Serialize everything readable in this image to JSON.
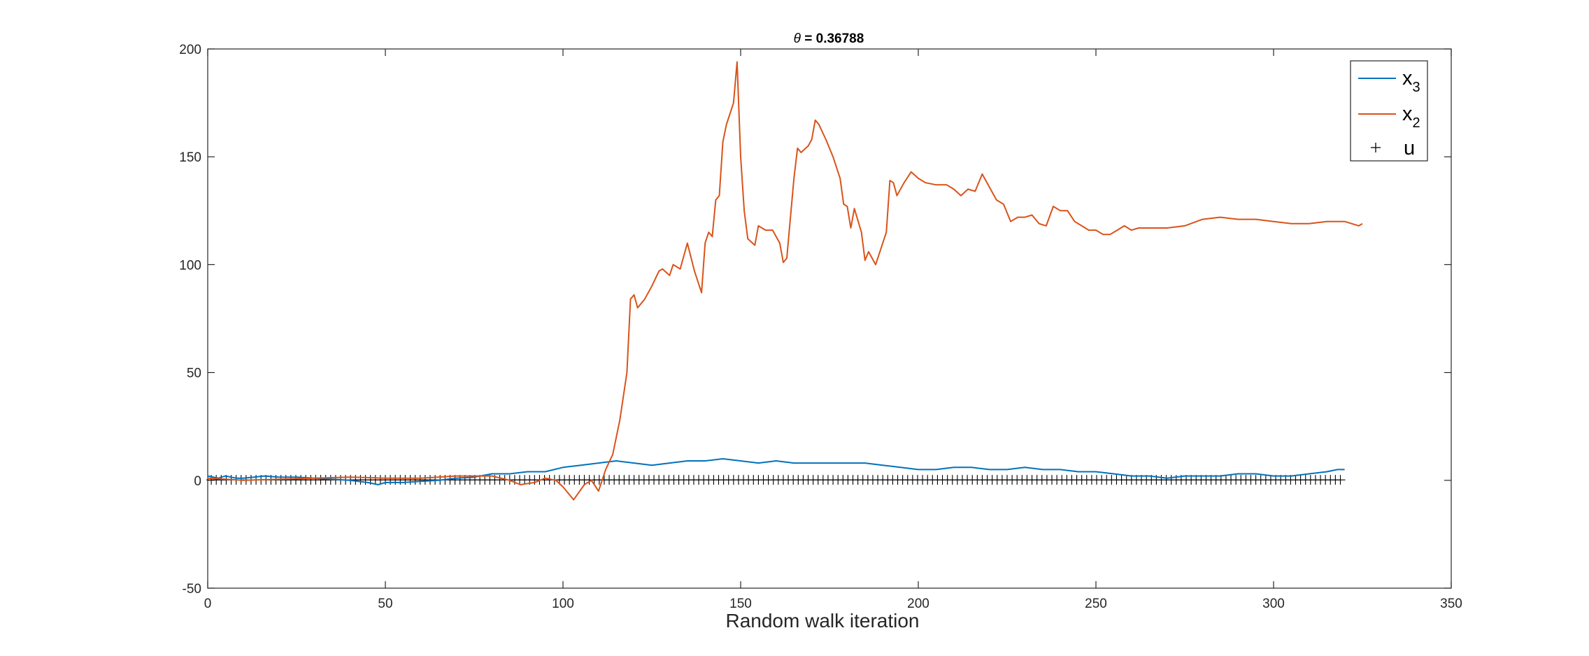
{
  "chart_data": {
    "type": "line",
    "title_symbol": "θ",
    "title_rest": " = 0.36788",
    "xlabel": "Random walk iteration",
    "ylabel": "",
    "xlim": [
      0,
      350
    ],
    "ylim": [
      -50,
      200
    ],
    "xticks": [
      0,
      50,
      100,
      150,
      200,
      250,
      300,
      350
    ],
    "yticks": [
      -50,
      0,
      50,
      100,
      150,
      200
    ],
    "legend_position": "top-right",
    "grid": false,
    "series": [
      {
        "name_main": "x",
        "name_sub": "3",
        "color": "#0072BD",
        "style": "line",
        "points": [
          [
            0,
            2
          ],
          [
            3,
            1
          ],
          [
            5,
            2
          ],
          [
            8,
            1
          ],
          [
            10,
            1
          ],
          [
            13,
            1.5
          ],
          [
            16,
            2
          ],
          [
            20,
            1.5
          ],
          [
            25,
            1.5
          ],
          [
            30,
            1
          ],
          [
            35,
            0.5
          ],
          [
            40,
            0
          ],
          [
            45,
            -1
          ],
          [
            48,
            -2
          ],
          [
            50,
            -1
          ],
          [
            55,
            -1
          ],
          [
            60,
            -0.5
          ],
          [
            65,
            0
          ],
          [
            70,
            1
          ],
          [
            75,
            1.5
          ],
          [
            80,
            3
          ],
          [
            85,
            3
          ],
          [
            90,
            4
          ],
          [
            95,
            4
          ],
          [
            100,
            6
          ],
          [
            105,
            7
          ],
          [
            110,
            8
          ],
          [
            115,
            9
          ],
          [
            120,
            8
          ],
          [
            125,
            7
          ],
          [
            130,
            8
          ],
          [
            135,
            9
          ],
          [
            140,
            9
          ],
          [
            145,
            10
          ],
          [
            150,
            9
          ],
          [
            155,
            8
          ],
          [
            160,
            9
          ],
          [
            165,
            8
          ],
          [
            170,
            8
          ],
          [
            175,
            8
          ],
          [
            180,
            8
          ],
          [
            185,
            8
          ],
          [
            190,
            7
          ],
          [
            195,
            6
          ],
          [
            200,
            5
          ],
          [
            205,
            5
          ],
          [
            210,
            6
          ],
          [
            215,
            6
          ],
          [
            220,
            5
          ],
          [
            225,
            5
          ],
          [
            230,
            6
          ],
          [
            235,
            5
          ],
          [
            240,
            5
          ],
          [
            245,
            4
          ],
          [
            250,
            4
          ],
          [
            255,
            3
          ],
          [
            260,
            2
          ],
          [
            265,
            2
          ],
          [
            270,
            1
          ],
          [
            275,
            2
          ],
          [
            280,
            2
          ],
          [
            285,
            2
          ],
          [
            290,
            3
          ],
          [
            295,
            3
          ],
          [
            300,
            2
          ],
          [
            305,
            2
          ],
          [
            310,
            3
          ],
          [
            315,
            4
          ],
          [
            318,
            5
          ],
          [
            320,
            5
          ]
        ]
      },
      {
        "name_main": "x",
        "name_sub": "2",
        "color": "#D95319",
        "style": "line",
        "points": [
          [
            0,
            1
          ],
          [
            10,
            0
          ],
          [
            20,
            0.5
          ],
          [
            30,
            1
          ],
          [
            40,
            1.5
          ],
          [
            50,
            1
          ],
          [
            60,
            1
          ],
          [
            70,
            2
          ],
          [
            80,
            2
          ],
          [
            85,
            0
          ],
          [
            88,
            -2
          ],
          [
            92,
            -1
          ],
          [
            95,
            1
          ],
          [
            98,
            0
          ],
          [
            100,
            -3
          ],
          [
            103,
            -9
          ],
          [
            106,
            -2
          ],
          [
            108,
            0
          ],
          [
            110,
            -5
          ],
          [
            112,
            5
          ],
          [
            114,
            12
          ],
          [
            116,
            28
          ],
          [
            118,
            50
          ],
          [
            119,
            84
          ],
          [
            120,
            86
          ],
          [
            121,
            80
          ],
          [
            123,
            84
          ],
          [
            125,
            90
          ],
          [
            127,
            97
          ],
          [
            128,
            98
          ],
          [
            130,
            95
          ],
          [
            131,
            100
          ],
          [
            133,
            98
          ],
          [
            135,
            110
          ],
          [
            137,
            97
          ],
          [
            139,
            87
          ],
          [
            140,
            110
          ],
          [
            141,
            115
          ],
          [
            142,
            113
          ],
          [
            143,
            130
          ],
          [
            144,
            132
          ],
          [
            145,
            157
          ],
          [
            146,
            165
          ],
          [
            147,
            170
          ],
          [
            148,
            175
          ],
          [
            149,
            194
          ],
          [
            150,
            150
          ],
          [
            151,
            125
          ],
          [
            152,
            112
          ],
          [
            154,
            109
          ],
          [
            155,
            118
          ],
          [
            157,
            116
          ],
          [
            159,
            116
          ],
          [
            161,
            110
          ],
          [
            162,
            101
          ],
          [
            163,
            103
          ],
          [
            165,
            140
          ],
          [
            166,
            154
          ],
          [
            167,
            152
          ],
          [
            169,
            155
          ],
          [
            170,
            158
          ],
          [
            171,
            167
          ],
          [
            172,
            165
          ],
          [
            174,
            158
          ],
          [
            176,
            150
          ],
          [
            178,
            140
          ],
          [
            179,
            128
          ],
          [
            180,
            127
          ],
          [
            181,
            117
          ],
          [
            182,
            126
          ],
          [
            184,
            115
          ],
          [
            185,
            102
          ],
          [
            186,
            106
          ],
          [
            188,
            100
          ],
          [
            190,
            110
          ],
          [
            191,
            115
          ],
          [
            192,
            139
          ],
          [
            193,
            138
          ],
          [
            194,
            132
          ],
          [
            196,
            138
          ],
          [
            198,
            143
          ],
          [
            200,
            140
          ],
          [
            202,
            138
          ],
          [
            205,
            137
          ],
          [
            208,
            137
          ],
          [
            210,
            135
          ],
          [
            212,
            132
          ],
          [
            214,
            135
          ],
          [
            216,
            134
          ],
          [
            218,
            142
          ],
          [
            220,
            136
          ],
          [
            222,
            130
          ],
          [
            224,
            128
          ],
          [
            226,
            120
          ],
          [
            228,
            122
          ],
          [
            230,
            122
          ],
          [
            232,
            123
          ],
          [
            234,
            119
          ],
          [
            236,
            118
          ],
          [
            238,
            127
          ],
          [
            240,
            125
          ],
          [
            242,
            125
          ],
          [
            244,
            120
          ],
          [
            246,
            118
          ],
          [
            248,
            116
          ],
          [
            250,
            116
          ],
          [
            252,
            114
          ],
          [
            254,
            114
          ],
          [
            256,
            116
          ],
          [
            258,
            118
          ],
          [
            260,
            116
          ],
          [
            262,
            117
          ],
          [
            265,
            117
          ],
          [
            270,
            117
          ],
          [
            275,
            118
          ],
          [
            280,
            121
          ],
          [
            285,
            122
          ],
          [
            290,
            121
          ],
          [
            295,
            121
          ],
          [
            300,
            120
          ],
          [
            305,
            119
          ],
          [
            310,
            119
          ],
          [
            315,
            120
          ],
          [
            318,
            120
          ],
          [
            320,
            120
          ],
          [
            322,
            119
          ],
          [
            324,
            118
          ],
          [
            325,
            119
          ]
        ]
      },
      {
        "name_main": "u",
        "name_sub": "",
        "color": "#000000",
        "style": "plus",
        "x_start": 1,
        "x_end": 320,
        "x_step": 1.4,
        "y": 0.2
      }
    ]
  }
}
